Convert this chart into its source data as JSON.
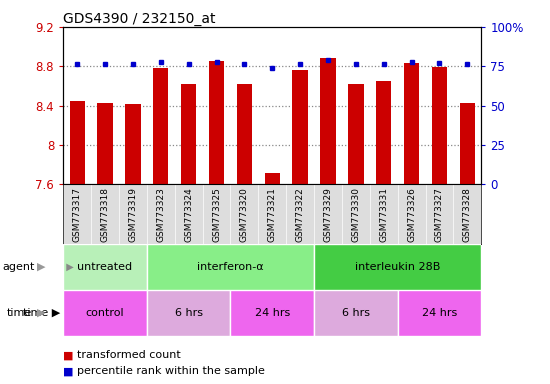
{
  "title": "GDS4390 / 232150_at",
  "samples": [
    "GSM773317",
    "GSM773318",
    "GSM773319",
    "GSM773323",
    "GSM773324",
    "GSM773325",
    "GSM773320",
    "GSM773321",
    "GSM773322",
    "GSM773329",
    "GSM773330",
    "GSM773331",
    "GSM773326",
    "GSM773327",
    "GSM773328"
  ],
  "red_values": [
    8.45,
    8.43,
    8.42,
    8.78,
    8.62,
    8.85,
    8.62,
    7.72,
    8.76,
    8.88,
    8.62,
    8.65,
    8.83,
    8.79,
    8.43
  ],
  "blue_values": [
    8.82,
    8.82,
    8.82,
    8.84,
    8.82,
    8.84,
    8.82,
    8.78,
    8.82,
    8.86,
    8.82,
    8.82,
    8.84,
    8.83,
    8.82
  ],
  "ylim": [
    7.6,
    9.2
  ],
  "yticks": [
    7.6,
    8.0,
    8.4,
    8.8,
    9.2
  ],
  "ytick_labels": [
    "7.6",
    "8",
    "8.4",
    "8.8",
    "9.2"
  ],
  "right_yticks_pct": [
    0,
    25,
    50,
    75,
    100
  ],
  "right_ytick_labels": [
    "0",
    "25",
    "50",
    "75",
    "100%"
  ],
  "hgrid_lines": [
    8.0,
    8.4,
    8.8
  ],
  "agent_groups": [
    {
      "label": "untreated",
      "start": 0,
      "end": 3,
      "color": "#b8f0b8"
    },
    {
      "label": "interferon-α",
      "start": 3,
      "end": 9,
      "color": "#88ee88"
    },
    {
      "label": "interleukin 28B",
      "start": 9,
      "end": 15,
      "color": "#44cc44"
    }
  ],
  "time_groups": [
    {
      "label": "control",
      "start": 0,
      "end": 3,
      "color": "#ee66ee"
    },
    {
      "label": "6 hrs",
      "start": 3,
      "end": 6,
      "color": "#ddaadd"
    },
    {
      "label": "24 hrs",
      "start": 6,
      "end": 9,
      "color": "#ee66ee"
    },
    {
      "label": "6 hrs",
      "start": 9,
      "end": 12,
      "color": "#ddaadd"
    },
    {
      "label": "24 hrs",
      "start": 12,
      "end": 15,
      "color": "#ee66ee"
    }
  ],
  "bar_color": "#cc0000",
  "dot_color": "#0000cc",
  "grid_color": "#888888",
  "bg_color": "#ffffff",
  "label_area_color": "#dddddd",
  "label_color_left": "#cc0000",
  "label_color_right": "#0000cc",
  "bar_width": 0.55,
  "legend_items": [
    "transformed count",
    "percentile rank within the sample"
  ]
}
